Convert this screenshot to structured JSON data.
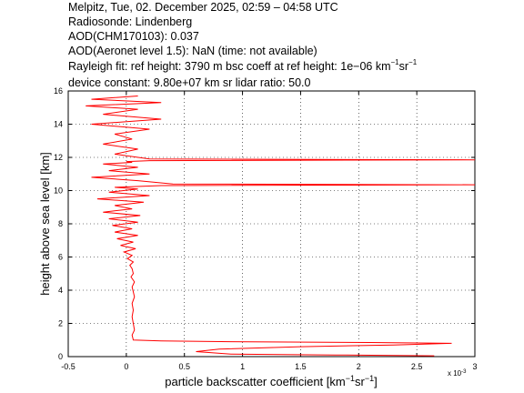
{
  "header": {
    "line1": "Melpitz, Tue, 02. December 2025, 02:59 – 04:58 UTC",
    "line2": "Radiosonde: Lindenberg",
    "line3": "AOD(CHM170103): 0.037",
    "line4": "AOD(Aeronet level 1.5): NaN   (time: not available)",
    "line5a": "Rayleigh fit:     ref height: 3790 m     bsc coeff at ref height: 1e−06 km",
    "line5_sup1": "−1",
    "line5_mid": "sr",
    "line5_sup2": "−1",
    "line6": "device constant: 9.80e+07 km sr     lidar ratio: 50.0"
  },
  "chart_data": {
    "type": "line",
    "xlabel": "particle backscatter coefficient [km⁻¹sr⁻¹]",
    "xlabel_base": "particle backscatter coefficient [km",
    "xlabel_sup1": "−1",
    "xlabel_mid": "sr",
    "xlabel_sup2": "−1",
    "xlabel_end": "]",
    "ylabel": "height above sea level [km]",
    "x_multiplier": "x 10",
    "x_multiplier_exp": "-3",
    "xlim": [
      -0.5,
      3
    ],
    "ylim": [
      0,
      16
    ],
    "xticks": [
      -0.5,
      0,
      0.5,
      1,
      1.5,
      2,
      2.5,
      3
    ],
    "xtick_labels": [
      "-0.5",
      "0",
      "0.5",
      "1",
      "1.5",
      "2",
      "2.5",
      "3"
    ],
    "yticks": [
      0,
      2,
      4,
      6,
      8,
      10,
      12,
      14,
      16
    ],
    "ytick_labels": [
      "0",
      "2",
      "4",
      "6",
      "8",
      "10",
      "12",
      "14",
      "16"
    ],
    "grid": true,
    "line_color": "#ff0000",
    "series": [
      {
        "name": "",
        "x": [
          2.65,
          1.8,
          0.9,
          0.6,
          0.8,
          1.5,
          2.3,
          2.8,
          2.1,
          0.9,
          0.3,
          0.06,
          0.05,
          0.07,
          0.06,
          0.05,
          0.06,
          0.05,
          0.07,
          0.06,
          0.05,
          0.07,
          0.04,
          0.06,
          0.05,
          0.03,
          0.06,
          0.01,
          0.05,
          -0.02,
          0.08,
          -0.05,
          0.06,
          -0.08,
          0.1,
          -0.1,
          0.05,
          -0.12,
          0.1,
          -0.15,
          0.12,
          -0.2,
          0.05,
          -0.1,
          0.15,
          -0.25,
          0.2,
          -0.15,
          0.1,
          -0.1,
          0.3,
          3.0,
          0.4,
          0.1,
          -0.3,
          0.2,
          -0.15,
          0.1,
          -0.2,
          0.05,
          0.0,
          0.2,
          3.0,
          0.2,
          -0.1,
          0.1,
          -0.2,
          0.05,
          -0.1,
          0.2,
          -0.3,
          0.3,
          -0.2,
          0.1,
          -0.35,
          0.3,
          -0.3,
          0.1
        ],
        "y": [
          0.05,
          0.1,
          0.15,
          0.3,
          0.45,
          0.6,
          0.7,
          0.8,
          0.85,
          0.9,
          0.95,
          1.0,
          1.3,
          1.6,
          2.0,
          2.4,
          2.8,
          3.2,
          3.6,
          3.9,
          4.2,
          4.5,
          4.8,
          5.0,
          5.3,
          5.5,
          5.7,
          5.9,
          6.1,
          6.3,
          6.5,
          6.7,
          6.9,
          7.1,
          7.3,
          7.5,
          7.7,
          7.9,
          8.1,
          8.3,
          8.5,
          8.7,
          8.9,
          9.1,
          9.3,
          9.5,
          9.7,
          9.9,
          10.1,
          10.2,
          10.3,
          10.35,
          10.4,
          10.6,
          10.8,
          11.0,
          11.2,
          11.4,
          11.6,
          11.7,
          11.75,
          11.8,
          11.85,
          11.9,
          12.2,
          12.5,
          12.8,
          13.1,
          13.4,
          13.7,
          14.0,
          14.3,
          14.6,
          14.9,
          15.1,
          15.3,
          15.5,
          15.7
        ]
      }
    ]
  }
}
